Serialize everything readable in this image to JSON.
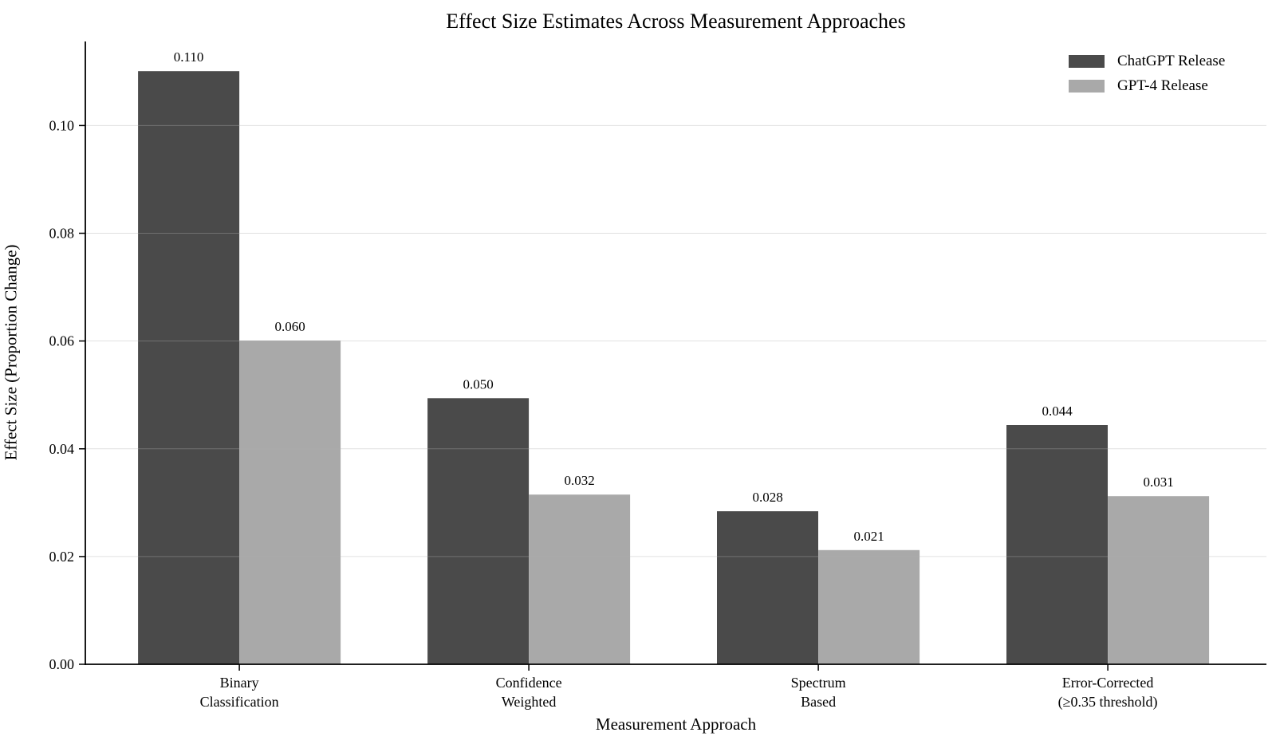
{
  "chart_data": {
    "type": "bar",
    "title": "Effect Size Estimates Across Measurement Approaches",
    "xlabel": "Measurement Approach",
    "ylabel": "Effect Size (Proportion Change)",
    "categories": [
      [
        "Binary",
        "Classification"
      ],
      [
        "Confidence",
        "Weighted"
      ],
      [
        "Spectrum",
        "Based"
      ],
      [
        "Error-Corrected",
        "(≥0.35 threshold)"
      ]
    ],
    "series": [
      {
        "name": "ChatGPT Release",
        "color": "#4a4a4a",
        "values": [
          0.11,
          0.05,
          0.028,
          0.044
        ],
        "value_labels": [
          "0.110",
          "0.050",
          "0.028",
          "0.044"
        ],
        "bar_heights": [
          0.1101,
          0.0494,
          0.0284,
          0.0444
        ]
      },
      {
        "name": "GPT-4 Release",
        "color": "#a9a9a9",
        "values": [
          0.06,
          0.032,
          0.021,
          0.031
        ],
        "value_labels": [
          "0.060",
          "0.032",
          "0.021",
          "0.031"
        ],
        "bar_heights": [
          0.0601,
          0.0315,
          0.0212,
          0.0312
        ]
      }
    ],
    "yticks": [
      {
        "value": 0.0,
        "label": "0.00"
      },
      {
        "value": 0.02,
        "label": "0.02"
      },
      {
        "value": 0.04,
        "label": "0.04"
      },
      {
        "value": 0.06,
        "label": "0.06"
      },
      {
        "value": 0.08,
        "label": "0.08"
      },
      {
        "value": 0.1,
        "label": "0.10"
      }
    ],
    "ylim": [
      0,
      0.1156
    ],
    "grid": true,
    "grid_color": "#b0b0b0",
    "axis_color": "#000000",
    "legend_position": "upper right"
  }
}
